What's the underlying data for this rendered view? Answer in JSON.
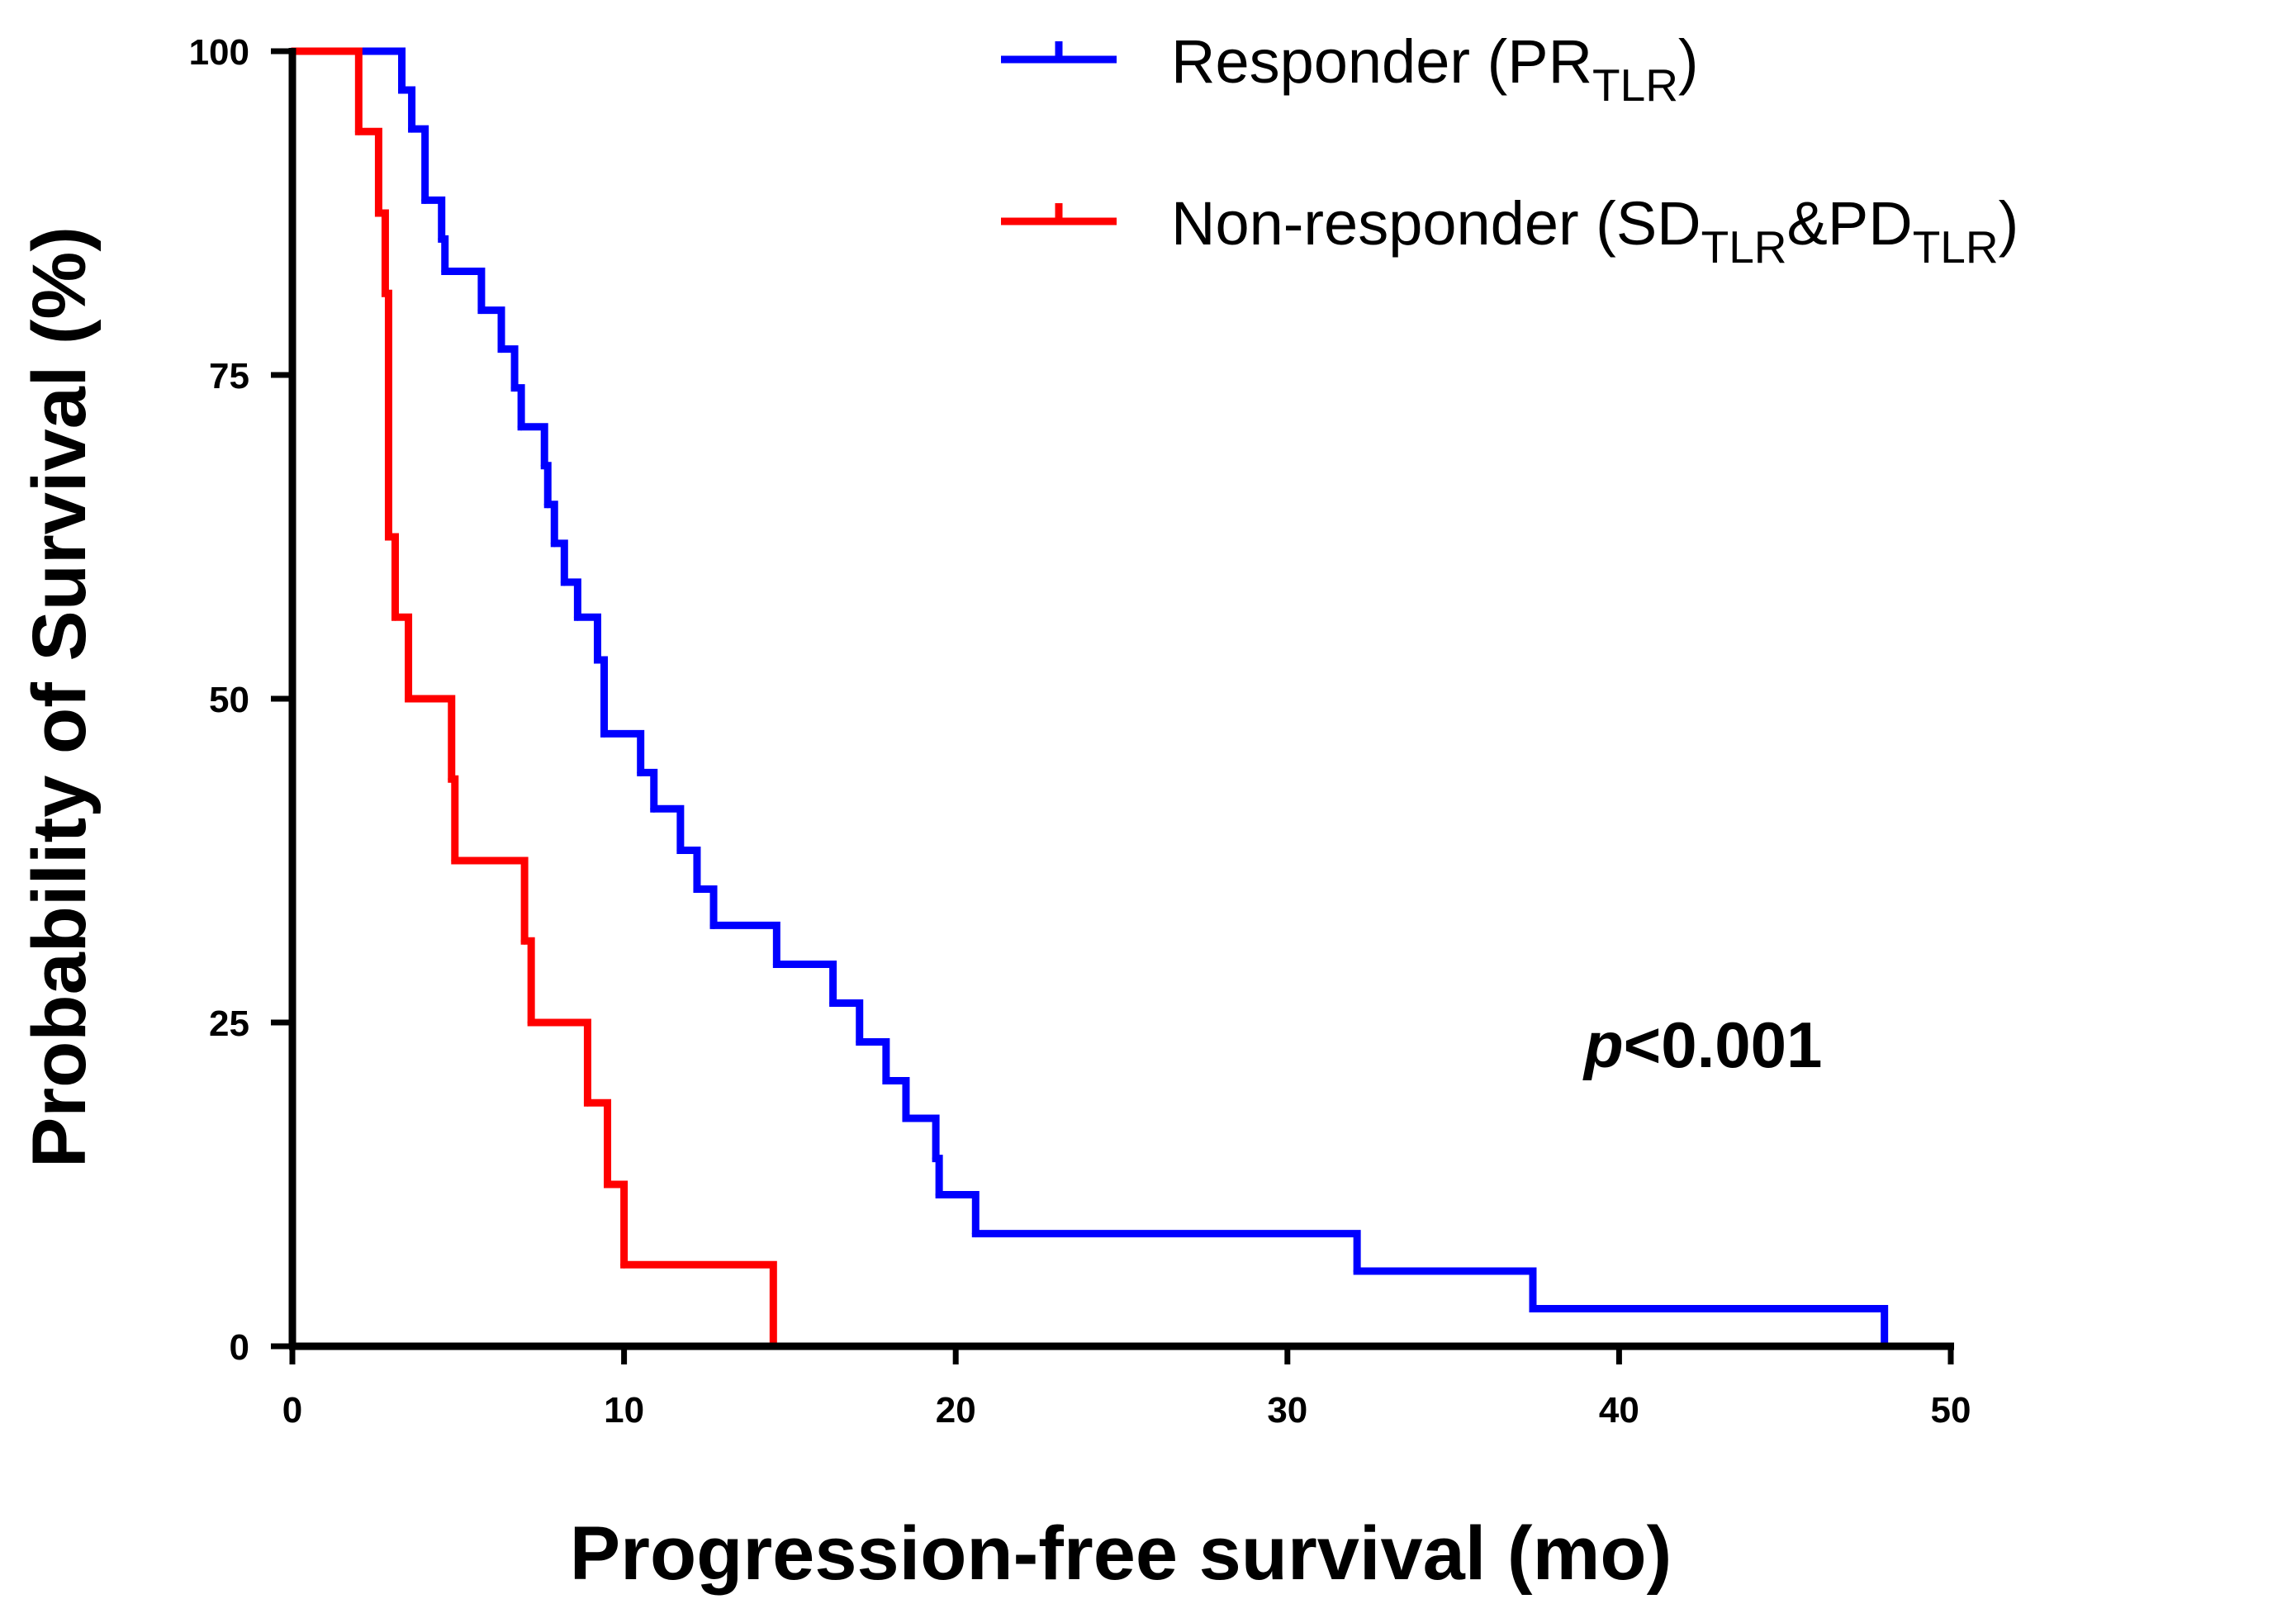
{
  "chart_data": {
    "type": "line",
    "subtype": "kaplan-meier step curve",
    "xlabel": "Progression-free survival (mo)",
    "ylabel": "Probability of Survival (%)",
    "xlim": [
      0,
      50
    ],
    "ylim": [
      0,
      100
    ],
    "x_ticks": [
      0,
      10,
      20,
      30,
      40,
      50
    ],
    "y_ticks": [
      0,
      25,
      50,
      75,
      100
    ],
    "grid": false,
    "legend_position": "top-right",
    "annotation": {
      "italic": "p",
      "rest": "<0.001"
    },
    "series": [
      {
        "name": "Responder (PRTLR)",
        "legend_main": "Responder (PR",
        "legend_sub": "TLR",
        "legend_tail": ")",
        "color": "#0000ff",
        "points": [
          [
            0,
            100
          ],
          [
            3.3,
            97
          ],
          [
            3.6,
            94
          ],
          [
            4.0,
            88.5
          ],
          [
            4.5,
            85.5
          ],
          [
            4.6,
            83
          ],
          [
            5.7,
            80
          ],
          [
            6.3,
            77
          ],
          [
            6.7,
            74
          ],
          [
            6.9,
            71
          ],
          [
            7.6,
            68
          ],
          [
            7.7,
            65
          ],
          [
            7.9,
            62
          ],
          [
            8.2,
            59
          ],
          [
            8.6,
            56.3
          ],
          [
            9.2,
            53
          ],
          [
            9.4,
            47.3
          ],
          [
            10.5,
            44.3
          ],
          [
            10.9,
            41.5
          ],
          [
            11.7,
            38.3
          ],
          [
            12.2,
            35.3
          ],
          [
            12.7,
            32.5
          ],
          [
            14.6,
            29.5
          ],
          [
            16.3,
            26.5
          ],
          [
            17.1,
            23.5
          ],
          [
            17.9,
            20.5
          ],
          [
            18.5,
            17.6
          ],
          [
            19.4,
            14.5
          ],
          [
            19.5,
            11.7
          ],
          [
            20.6,
            8.7
          ],
          [
            32.1,
            5.8
          ],
          [
            37.4,
            2.9
          ],
          [
            48.0,
            0
          ]
        ]
      },
      {
        "name": "Non-responder (SDTLR&PDTLR)",
        "legend_main": "Non-responder (SD",
        "legend_sub": "TLR",
        "legend_mid": "&PD",
        "legend_sub2": "TLR",
        "legend_tail": ")",
        "color": "#ff0000",
        "points": [
          [
            0,
            100
          ],
          [
            2.0,
            93.8
          ],
          [
            2.6,
            87.5
          ],
          [
            2.8,
            81.3
          ],
          [
            2.9,
            62.5
          ],
          [
            3.1,
            56.3
          ],
          [
            3.5,
            50
          ],
          [
            4.8,
            43.8
          ],
          [
            4.9,
            37.5
          ],
          [
            7.0,
            31.3
          ],
          [
            7.2,
            25
          ],
          [
            8.9,
            18.8
          ],
          [
            9.5,
            12.5
          ],
          [
            10.0,
            6.3
          ],
          [
            14.5,
            0
          ]
        ]
      }
    ]
  }
}
